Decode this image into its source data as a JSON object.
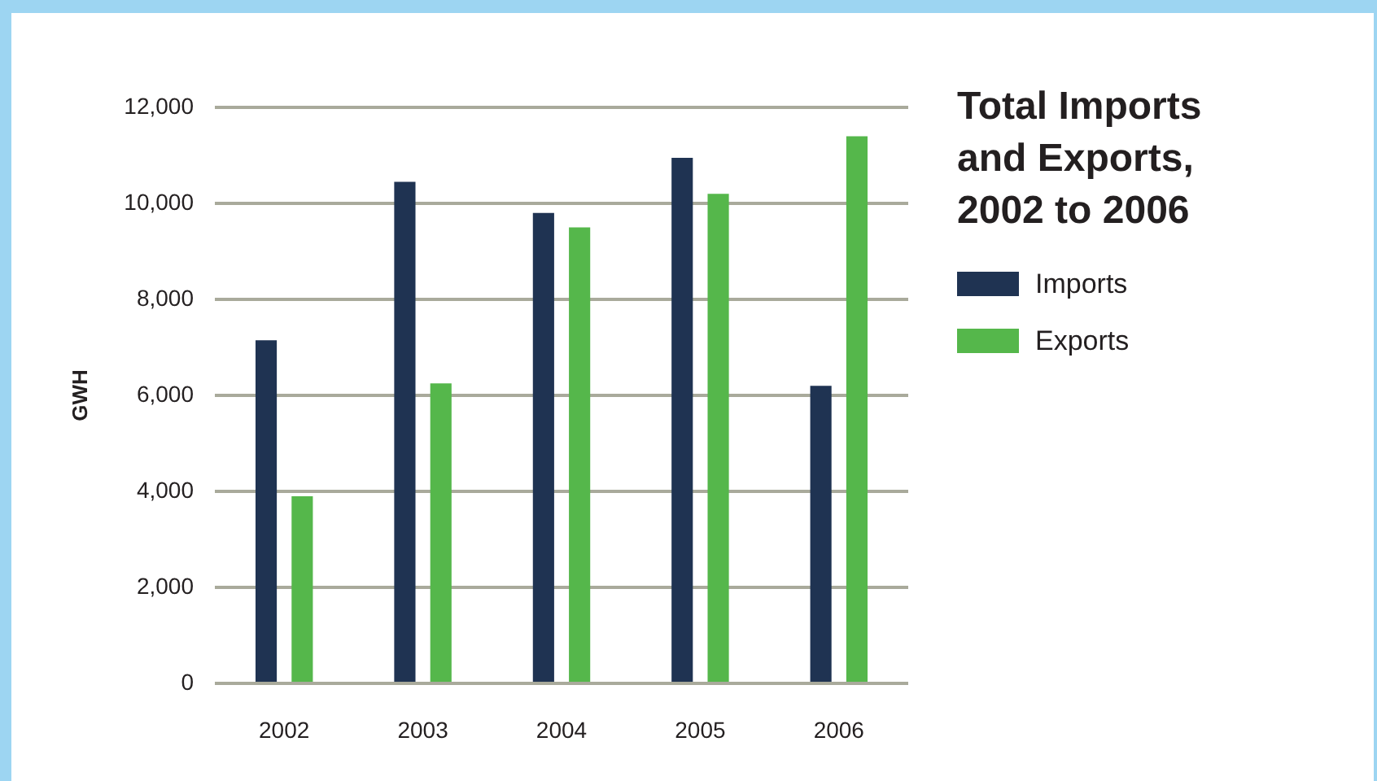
{
  "chart_data": {
    "type": "bar",
    "title": "Total Imports and Exports, 2002 to 2006",
    "ylabel": "GWH",
    "categories": [
      "2002",
      "2003",
      "2004",
      "2005",
      "2006"
    ],
    "series": [
      {
        "name": "Imports",
        "color": "#1f3352",
        "values": [
          7150,
          10450,
          9800,
          10950,
          6200
        ]
      },
      {
        "name": "Exports",
        "color": "#55b74b",
        "values": [
          3900,
          6250,
          9500,
          10200,
          11400
        ]
      }
    ],
    "ylim": [
      0,
      12000
    ],
    "yticks": [
      0,
      {
        "value": 2000,
        "label": "2,000"
      },
      {
        "value": 4000,
        "label": "4,000"
      },
      {
        "value": 6000,
        "label": "6,000"
      },
      {
        "value": 8000,
        "label": "8,000"
      },
      {
        "value": 10000,
        "label": "10,000"
      },
      {
        "value": 12000,
        "label": "12,000"
      }
    ],
    "grid": "y",
    "legend": "right"
  }
}
